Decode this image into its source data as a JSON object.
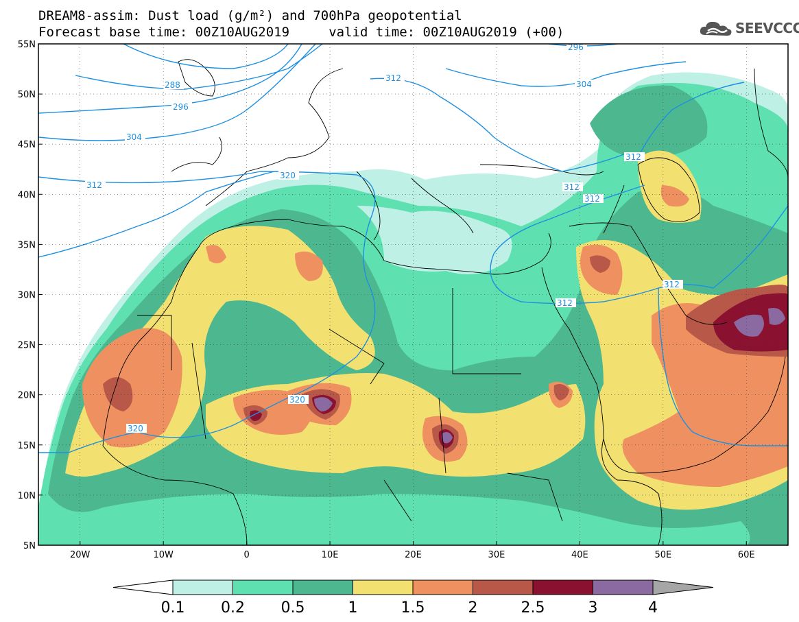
{
  "title_line1": "DREAM8-assim: Dust load (g/m²) and 700hPa geopotential",
  "title_line2": "Forecast base time: 00Z10AUG2019     valid time: 00Z10AUG2019 (+00)",
  "logo": {
    "text": "SEEVCCC",
    "icon": "cloud-logo-icon"
  },
  "axes": {
    "lon_ticks": [
      "20W",
      "10W",
      "0",
      "10E",
      "20E",
      "30E",
      "40E",
      "50E",
      "60E"
    ],
    "lat_ticks": [
      "55N",
      "50N",
      "45N",
      "40N",
      "35N",
      "30N",
      "25N",
      "20N",
      "15N",
      "10N",
      "5N"
    ],
    "lon_range": [
      -25,
      65
    ],
    "lat_range": [
      5,
      55
    ]
  },
  "legend": {
    "labels": [
      "0.1",
      "0.2",
      "0.5",
      "1",
      "1.5",
      "2",
      "2.5",
      "3",
      "4"
    ],
    "colors": [
      "#ffffff",
      "#bff0e6",
      "#5ee0b0",
      "#4db890",
      "#f2e070",
      "#ee9060",
      "#b85848",
      "#8a1230",
      "#8a6aa0",
      "#a6a6a6"
    ]
  },
  "contour_labels": [
    "296",
    "288",
    "296",
    "304",
    "312",
    "320",
    "312",
    "304",
    "312",
    "312",
    "312",
    "312",
    "312",
    "320",
    "320"
  ]
}
